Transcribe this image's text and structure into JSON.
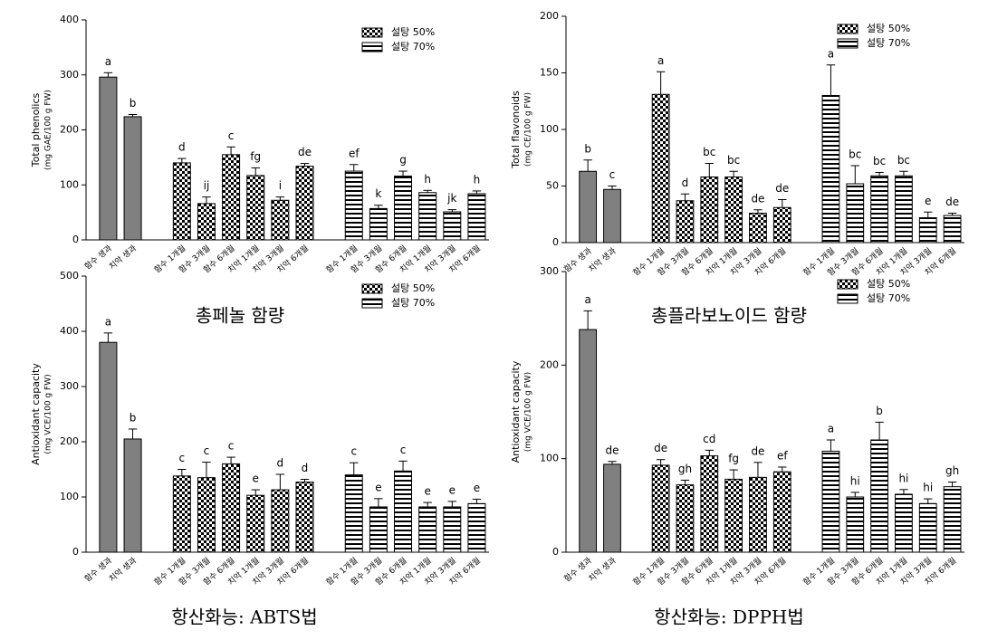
{
  "chart_data": [
    {
      "type": "bar",
      "ylabel": "Total phenolics",
      "ylabel_unit": "(mg GAE/100 g FW)",
      "caption": "총페놀 함량",
      "categories": [
        "함수 생과",
        "치악 생과",
        "함수 1개월",
        "함수 3개월",
        "함수 6개월",
        "치악 1개월",
        "치악 3개월",
        "치악 6개월",
        "함수 1개월",
        "함수 3개월",
        "함수 6개월",
        "치악 1개월",
        "치악 3개월",
        "치악 6개월"
      ],
      "ylim": [
        0,
        400
      ],
      "yticks": [
        0,
        100,
        200,
        300,
        400
      ],
      "series": [
        {
          "color": "#808080",
          "pattern": "solid",
          "values": [
            296,
            224,
            null,
            null,
            null,
            null,
            null,
            null,
            null,
            null,
            null,
            null,
            null,
            null
          ],
          "errors": [
            8,
            4,
            null,
            null,
            null,
            null,
            null,
            null,
            null,
            null,
            null,
            null,
            null,
            null
          ],
          "letters": [
            "a",
            "b",
            null,
            null,
            null,
            null,
            null,
            null,
            null,
            null,
            null,
            null,
            null,
            null
          ]
        },
        {
          "name": "설탕 50%",
          "color": "#000000",
          "pattern": "checker",
          "values": [
            null,
            null,
            140,
            66,
            155,
            117,
            72,
            134,
            null,
            null,
            null,
            null,
            null,
            null
          ],
          "errors": [
            null,
            null,
            8,
            12,
            14,
            14,
            6,
            5,
            null,
            null,
            null,
            null,
            null,
            null
          ],
          "letters": [
            null,
            null,
            "d",
            "ij",
            "c",
            "fg",
            "i",
            "de",
            null,
            null,
            null,
            null,
            null,
            null
          ]
        },
        {
          "name": "설탕 70%",
          "color": "#000000",
          "pattern": "stripes",
          "values": [
            null,
            null,
            null,
            null,
            null,
            null,
            null,
            null,
            125,
            57,
            116,
            86,
            51,
            84
          ],
          "errors": [
            null,
            null,
            null,
            null,
            null,
            null,
            null,
            null,
            12,
            6,
            9,
            4,
            4,
            5
          ],
          "letters": [
            null,
            null,
            null,
            null,
            null,
            null,
            null,
            null,
            "ef",
            "k",
            "g",
            "h",
            "jk",
            "h"
          ]
        }
      ]
    },
    {
      "type": "bar",
      "ylabel": "Total flavonoids",
      "ylabel_unit": "(mg CE/100 g FW)",
      "caption": "총플라보노이드 함량",
      "categories": [
        "함수 생과",
        "치악 생과",
        "함수 1개월",
        "함수 3개월",
        "함수 6개월",
        "치악 1개월",
        "치악 3개월",
        "치악 6개월",
        "함수 1개월",
        "함수 3개월",
        "함수 6개월",
        "치악 1개월",
        "치악 3개월",
        "치악 6개월"
      ],
      "ylim": [
        0,
        200
      ],
      "yticks": [
        0,
        50,
        100,
        150,
        200
      ],
      "series": [
        {
          "color": "#808080",
          "pattern": "solid",
          "values": [
            63,
            47,
            null,
            null,
            null,
            null,
            null,
            null,
            null,
            null,
            null,
            null,
            null,
            null
          ],
          "errors": [
            10,
            3,
            null,
            null,
            null,
            null,
            null,
            null,
            null,
            null,
            null,
            null,
            null,
            null
          ],
          "letters": [
            "b",
            "c",
            null,
            null,
            null,
            null,
            null,
            null,
            null,
            null,
            null,
            null,
            null,
            null
          ]
        },
        {
          "name": "설탕 50%",
          "color": "#000000",
          "pattern": "checker",
          "values": [
            null,
            null,
            131,
            37,
            58,
            58,
            26,
            31,
            null,
            null,
            null,
            null,
            null,
            null
          ],
          "errors": [
            null,
            null,
            20,
            6,
            12,
            5,
            3,
            7,
            null,
            null,
            null,
            null,
            null,
            null
          ],
          "letters": [
            null,
            null,
            "a",
            "d",
            "bc",
            "bc",
            "de",
            "de",
            null,
            null,
            null,
            null,
            null,
            null
          ]
        },
        {
          "name": "설탕 70%",
          "color": "#000000",
          "pattern": "stripes",
          "values": [
            null,
            null,
            null,
            null,
            null,
            null,
            null,
            null,
            130,
            52,
            59,
            59,
            22,
            24
          ],
          "errors": [
            null,
            null,
            null,
            null,
            null,
            null,
            null,
            null,
            27,
            16,
            3,
            4,
            5,
            2
          ],
          "letters": [
            null,
            null,
            null,
            null,
            null,
            null,
            null,
            null,
            "a",
            "bc",
            "bc",
            "bc",
            "e",
            "de"
          ]
        }
      ]
    },
    {
      "type": "bar",
      "ylabel": "Antioxidant capacity",
      "ylabel_unit": "(mg VCE/100 g FW)",
      "caption": "항산화능: ABTS법",
      "categories": [
        "함수 생과",
        "치악 생과",
        "함수 1개월",
        "함수 3개월",
        "함수 6개월",
        "치악 1개월",
        "치악 3개월",
        "치악 6개월",
        "함수 1개월",
        "함수 3개월",
        "함수 6개월",
        "치악 1개월",
        "치악 3개월",
        "치악 6개월"
      ],
      "ylim": [
        0,
        500
      ],
      "yticks": [
        0,
        100,
        200,
        300,
        400,
        500
      ],
      "series": [
        {
          "color": "#808080",
          "pattern": "solid",
          "values": [
            380,
            205,
            null,
            null,
            null,
            null,
            null,
            null,
            null,
            null,
            null,
            null,
            null,
            null
          ],
          "errors": [
            17,
            18,
            null,
            null,
            null,
            null,
            null,
            null,
            null,
            null,
            null,
            null,
            null,
            null
          ],
          "letters": [
            "a",
            "b",
            null,
            null,
            null,
            null,
            null,
            null,
            null,
            null,
            null,
            null,
            null,
            null
          ]
        },
        {
          "name": "설탕 50%",
          "color": "#000000",
          "pattern": "checker",
          "values": [
            null,
            null,
            138,
            135,
            160,
            103,
            113,
            127,
            null,
            null,
            null,
            null,
            null,
            null
          ],
          "errors": [
            null,
            null,
            12,
            28,
            12,
            10,
            28,
            5,
            null,
            null,
            null,
            null,
            null,
            null
          ],
          "letters": [
            null,
            null,
            "c",
            "c",
            "c",
            "e",
            "d",
            "d",
            null,
            null,
            null,
            null,
            null,
            null
          ]
        },
        {
          "name": "설탕 70%",
          "color": "#000000",
          "pattern": "stripes",
          "values": [
            null,
            null,
            null,
            null,
            null,
            null,
            null,
            null,
            140,
            82,
            147,
            82,
            82,
            88
          ],
          "errors": [
            null,
            null,
            null,
            null,
            null,
            null,
            null,
            null,
            22,
            15,
            18,
            8,
            10,
            8
          ],
          "letters": [
            null,
            null,
            null,
            null,
            null,
            null,
            null,
            null,
            "c",
            "e",
            "c",
            "e",
            "e",
            "e"
          ]
        }
      ]
    },
    {
      "type": "bar",
      "ylabel": "Antioxidant capacity",
      "ylabel_unit": "(mg VCE/100 g FW)",
      "caption": "항산화능: DPPH법",
      "categories": [
        "함수 생과",
        "치악 생과",
        "함수 1개월",
        "함수 3개월",
        "함수 6개월",
        "치악 1개월",
        "치악 3개월",
        "치악 6개월",
        "함수 1개월",
        "함수 3개월",
        "함수 6개월",
        "치악 1개월",
        "치악 3개월",
        "치악 6개월"
      ],
      "ylim": [
        0,
        300
      ],
      "yticks": [
        0,
        100,
        200,
        300
      ],
      "series": [
        {
          "color": "#808080",
          "pattern": "solid",
          "values": [
            238,
            94,
            null,
            null,
            null,
            null,
            null,
            null,
            null,
            null,
            null,
            null,
            null,
            null
          ],
          "errors": [
            20,
            3,
            null,
            null,
            null,
            null,
            null,
            null,
            null,
            null,
            null,
            null,
            null,
            null
          ],
          "letters": [
            "a",
            "de",
            null,
            null,
            null,
            null,
            null,
            null,
            null,
            null,
            null,
            null,
            null,
            null
          ]
        },
        {
          "name": "설탕 50%",
          "color": "#000000",
          "pattern": "checker",
          "values": [
            null,
            null,
            93,
            72,
            103,
            78,
            80,
            86,
            null,
            null,
            null,
            null,
            null,
            null
          ],
          "errors": [
            null,
            null,
            6,
            5,
            6,
            10,
            16,
            5,
            null,
            null,
            null,
            null,
            null,
            null
          ],
          "letters": [
            null,
            null,
            "de",
            "gh",
            "cd",
            "fg",
            "de",
            "ef",
            null,
            null,
            null,
            null,
            null,
            null
          ]
        },
        {
          "name": "설탕 70%",
          "color": "#000000",
          "pattern": "stripes",
          "values": [
            null,
            null,
            null,
            null,
            null,
            null,
            null,
            null,
            108,
            59,
            120,
            62,
            52,
            70
          ],
          "errors": [
            null,
            null,
            null,
            null,
            null,
            null,
            null,
            null,
            12,
            5,
            19,
            5,
            5,
            5
          ],
          "letters": [
            null,
            null,
            null,
            null,
            null,
            null,
            null,
            null,
            "a",
            "hi",
            "b",
            "hi",
            "hi",
            "gh"
          ]
        }
      ]
    }
  ]
}
